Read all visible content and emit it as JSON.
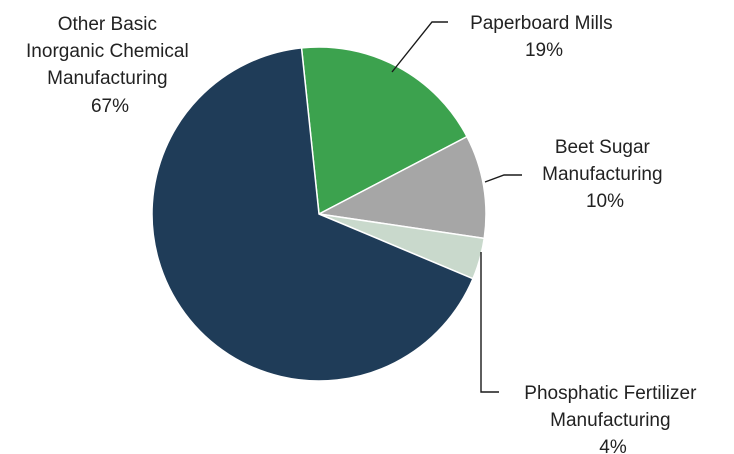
{
  "chart_data": {
    "type": "pie",
    "title": "",
    "slices": [
      {
        "lines": [
          "Paperboard Mills"
        ],
        "percent_label": "19%",
        "value": 19,
        "color": "#3ca24e"
      },
      {
        "lines": [
          "Beet Sugar",
          "Manufacturing"
        ],
        "percent_label": "10%",
        "value": 10,
        "color": "#a6a6a6"
      },
      {
        "lines": [
          "Phosphatic Fertilizer",
          "Manufacturing"
        ],
        "percent_label": "4%",
        "value": 4,
        "color": "#c9d9cc"
      },
      {
        "lines": [
          "Other Basic",
          "Inorganic Chemical",
          "Manufacturing"
        ],
        "percent_label": "67%",
        "value": 67,
        "color": "#1f3c58"
      }
    ]
  }
}
